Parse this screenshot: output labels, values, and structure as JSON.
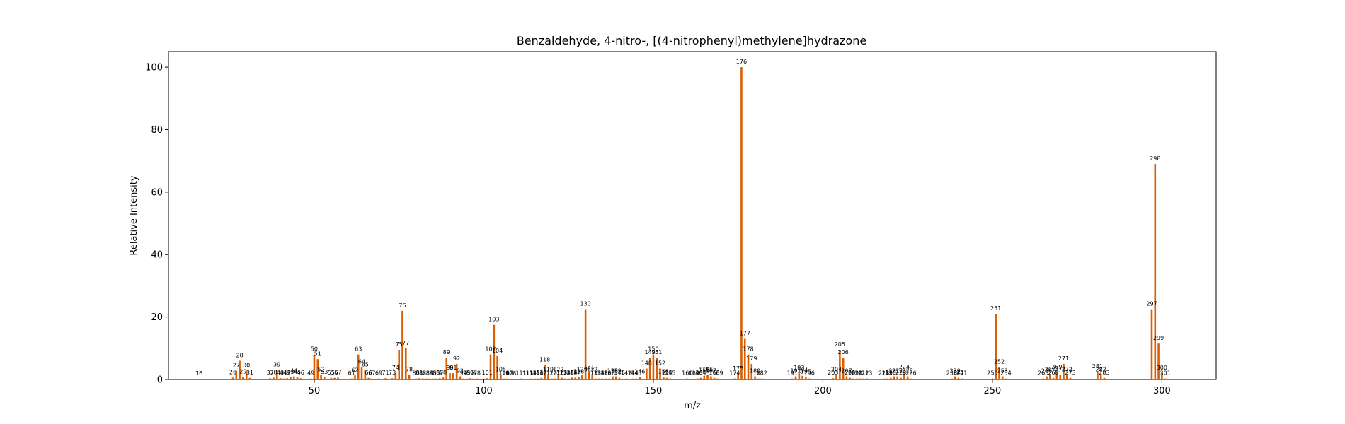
{
  "chart_data": {
    "type": "bar",
    "title": "Benzaldehyde, 4-nitro-, [(4-nitrophenyl)methylene]hydrazone",
    "xlabel": "m/z",
    "ylabel": "Relative Intensity",
    "xlim": [
      7,
      316
    ],
    "ylim": [
      0,
      105
    ],
    "xticks": [
      50,
      100,
      150,
      200,
      250,
      300
    ],
    "yticks": [
      0,
      20,
      40,
      60,
      80,
      100
    ],
    "grid": false,
    "bar_color": "#d95f02",
    "points": [
      {
        "mz": 16,
        "i": 0.2
      },
      {
        "mz": 26,
        "i": 0.6
      },
      {
        "mz": 27,
        "i": 2.8
      },
      {
        "mz": 28,
        "i": 6.0
      },
      {
        "mz": 29,
        "i": 0.8
      },
      {
        "mz": 30,
        "i": 2.8
      },
      {
        "mz": 31,
        "i": 0.5
      },
      {
        "mz": 37,
        "i": 0.4
      },
      {
        "mz": 38,
        "i": 0.6
      },
      {
        "mz": 39,
        "i": 3.0
      },
      {
        "mz": 40,
        "i": 0.4
      },
      {
        "mz": 41,
        "i": 0.3
      },
      {
        "mz": 42,
        "i": 0.4
      },
      {
        "mz": 43,
        "i": 0.7
      },
      {
        "mz": 44,
        "i": 1.0
      },
      {
        "mz": 45,
        "i": 0.7
      },
      {
        "mz": 46,
        "i": 0.4
      },
      {
        "mz": 49,
        "i": 0.3
      },
      {
        "mz": 50,
        "i": 8.0
      },
      {
        "mz": 51,
        "i": 6.5
      },
      {
        "mz": 52,
        "i": 1.5
      },
      {
        "mz": 53,
        "i": 0.7
      },
      {
        "mz": 55,
        "i": 0.5
      },
      {
        "mz": 56,
        "i": 0.5
      },
      {
        "mz": 57,
        "i": 0.6
      },
      {
        "mz": 61,
        "i": 0.3
      },
      {
        "mz": 62,
        "i": 1.3
      },
      {
        "mz": 63,
        "i": 8.0
      },
      {
        "mz": 64,
        "i": 4.0
      },
      {
        "mz": 65,
        "i": 3.0
      },
      {
        "mz": 66,
        "i": 0.5
      },
      {
        "mz": 67,
        "i": 0.3
      },
      {
        "mz": 69,
        "i": 0.3
      },
      {
        "mz": 71,
        "i": 0.4
      },
      {
        "mz": 73,
        "i": 0.4
      },
      {
        "mz": 74,
        "i": 2.0
      },
      {
        "mz": 75,
        "i": 9.5
      },
      {
        "mz": 76,
        "i": 22.0
      },
      {
        "mz": 77,
        "i": 10.0
      },
      {
        "mz": 78,
        "i": 1.5
      },
      {
        "mz": 80,
        "i": 0.3
      },
      {
        "mz": 81,
        "i": 0.4
      },
      {
        "mz": 82,
        "i": 0.3
      },
      {
        "mz": 83,
        "i": 0.3
      },
      {
        "mz": 84,
        "i": 0.3
      },
      {
        "mz": 85,
        "i": 0.3
      },
      {
        "mz": 86,
        "i": 0.3
      },
      {
        "mz": 87,
        "i": 0.4
      },
      {
        "mz": 88,
        "i": 0.6
      },
      {
        "mz": 89,
        "i": 7.0
      },
      {
        "mz": 90,
        "i": 2.0
      },
      {
        "mz": 91,
        "i": 2.0
      },
      {
        "mz": 92,
        "i": 5.0
      },
      {
        "mz": 93,
        "i": 1.0
      },
      {
        "mz": 94,
        "i": 0.3
      },
      {
        "mz": 95,
        "i": 0.3
      },
      {
        "mz": 96,
        "i": 0.4
      },
      {
        "mz": 97,
        "i": 0.3
      },
      {
        "mz": 98,
        "i": 0.3
      },
      {
        "mz": 101,
        "i": 0.4
      },
      {
        "mz": 102,
        "i": 8.0
      },
      {
        "mz": 103,
        "i": 17.5
      },
      {
        "mz": 104,
        "i": 7.5
      },
      {
        "mz": 105,
        "i": 1.5
      },
      {
        "mz": 106,
        "i": 0.3
      },
      {
        "mz": 107,
        "i": 0.3
      },
      {
        "mz": 108,
        "i": 0.2
      },
      {
        "mz": 111,
        "i": 0.3
      },
      {
        "mz": 113,
        "i": 0.2
      },
      {
        "mz": 114,
        "i": 0.3
      },
      {
        "mz": 115,
        "i": 0.3
      },
      {
        "mz": 116,
        "i": 0.3
      },
      {
        "mz": 117,
        "i": 0.5
      },
      {
        "mz": 118,
        "i": 4.6
      },
      {
        "mz": 119,
        "i": 1.5
      },
      {
        "mz": 120,
        "i": 0.3
      },
      {
        "mz": 121,
        "i": 0.3
      },
      {
        "mz": 122,
        "i": 1.5
      },
      {
        "mz": 123,
        "i": 0.5
      },
      {
        "mz": 124,
        "i": 0.3
      },
      {
        "mz": 125,
        "i": 0.3
      },
      {
        "mz": 126,
        "i": 0.6
      },
      {
        "mz": 127,
        "i": 0.6
      },
      {
        "mz": 128,
        "i": 0.8
      },
      {
        "mz": 129,
        "i": 1.5
      },
      {
        "mz": 130,
        "i": 22.5
      },
      {
        "mz": 131,
        "i": 2.3
      },
      {
        "mz": 132,
        "i": 1.5
      },
      {
        "mz": 133,
        "i": 0.3
      },
      {
        "mz": 134,
        "i": 0.3
      },
      {
        "mz": 135,
        "i": 0.3
      },
      {
        "mz": 136,
        "i": 0.3
      },
      {
        "mz": 137,
        "i": 0.3
      },
      {
        "mz": 138,
        "i": 1.0
      },
      {
        "mz": 139,
        "i": 1.0
      },
      {
        "mz": 140,
        "i": 0.5
      },
      {
        "mz": 142,
        "i": 0.3
      },
      {
        "mz": 144,
        "i": 0.3
      },
      {
        "mz": 145,
        "i": 0.3
      },
      {
        "mz": 146,
        "i": 0.8
      },
      {
        "mz": 148,
        "i": 3.5
      },
      {
        "mz": 149,
        "i": 7.0
      },
      {
        "mz": 150,
        "i": 8.0
      },
      {
        "mz": 151,
        "i": 7.0
      },
      {
        "mz": 152,
        "i": 3.5
      },
      {
        "mz": 153,
        "i": 0.8
      },
      {
        "mz": 154,
        "i": 0.5
      },
      {
        "mz": 155,
        "i": 0.3
      },
      {
        "mz": 160,
        "i": 0.3
      },
      {
        "mz": 162,
        "i": 0.2
      },
      {
        "mz": 163,
        "i": 0.3
      },
      {
        "mz": 164,
        "i": 0.5
      },
      {
        "mz": 165,
        "i": 1.2
      },
      {
        "mz": 166,
        "i": 1.5
      },
      {
        "mz": 167,
        "i": 1.0
      },
      {
        "mz": 168,
        "i": 0.5
      },
      {
        "mz": 169,
        "i": 0.3
      },
      {
        "mz": 174,
        "i": 0.3
      },
      {
        "mz": 175,
        "i": 1.8
      },
      {
        "mz": 176,
        "i": 100.0
      },
      {
        "mz": 177,
        "i": 13.0
      },
      {
        "mz": 178,
        "i": 8.0
      },
      {
        "mz": 179,
        "i": 5.0
      },
      {
        "mz": 180,
        "i": 1.0
      },
      {
        "mz": 181,
        "i": 0.3
      },
      {
        "mz": 182,
        "i": 0.3
      },
      {
        "mz": 191,
        "i": 0.3
      },
      {
        "mz": 192,
        "i": 1.0
      },
      {
        "mz": 193,
        "i": 2.0
      },
      {
        "mz": 194,
        "i": 1.2
      },
      {
        "mz": 195,
        "i": 0.8
      },
      {
        "mz": 196,
        "i": 0.3
      },
      {
        "mz": 203,
        "i": 0.4
      },
      {
        "mz": 204,
        "i": 1.5
      },
      {
        "mz": 205,
        "i": 9.5
      },
      {
        "mz": 206,
        "i": 7.0
      },
      {
        "mz": 207,
        "i": 1.0
      },
      {
        "mz": 208,
        "i": 0.5
      },
      {
        "mz": 209,
        "i": 0.3
      },
      {
        "mz": 210,
        "i": 0.3
      },
      {
        "mz": 211,
        "i": 0.3
      },
      {
        "mz": 212,
        "i": 0.3
      },
      {
        "mz": 213,
        "i": 0.3
      },
      {
        "mz": 218,
        "i": 0.3
      },
      {
        "mz": 219,
        "i": 0.3
      },
      {
        "mz": 220,
        "i": 0.5
      },
      {
        "mz": 221,
        "i": 1.0
      },
      {
        "mz": 222,
        "i": 1.0
      },
      {
        "mz": 223,
        "i": 0.5
      },
      {
        "mz": 224,
        "i": 2.3
      },
      {
        "mz": 225,
        "i": 1.0
      },
      {
        "mz": 226,
        "i": 0.3
      },
      {
        "mz": 238,
        "i": 0.3
      },
      {
        "mz": 239,
        "i": 1.0
      },
      {
        "mz": 240,
        "i": 0.5
      },
      {
        "mz": 241,
        "i": 0.3
      },
      {
        "mz": 250,
        "i": 0.3
      },
      {
        "mz": 251,
        "i": 21.0
      },
      {
        "mz": 252,
        "i": 4.0
      },
      {
        "mz": 253,
        "i": 1.0
      },
      {
        "mz": 254,
        "i": 0.3
      },
      {
        "mz": 265,
        "i": 0.3
      },
      {
        "mz": 266,
        "i": 1.0
      },
      {
        "mz": 267,
        "i": 1.5
      },
      {
        "mz": 268,
        "i": 0.5
      },
      {
        "mz": 269,
        "i": 2.3
      },
      {
        "mz": 270,
        "i": 1.5
      },
      {
        "mz": 271,
        "i": 5.0
      },
      {
        "mz": 272,
        "i": 1.5
      },
      {
        "mz": 273,
        "i": 0.5
      },
      {
        "mz": 281,
        "i": 2.5
      },
      {
        "mz": 282,
        "i": 1.5
      },
      {
        "mz": 283,
        "i": 0.5
      },
      {
        "mz": 297,
        "i": 22.5
      },
      {
        "mz": 298,
        "i": 69.0
      },
      {
        "mz": 299,
        "i": 11.5
      },
      {
        "mz": 300,
        "i": 2.0
      },
      {
        "mz": 301,
        "i": 0.3
      }
    ]
  }
}
